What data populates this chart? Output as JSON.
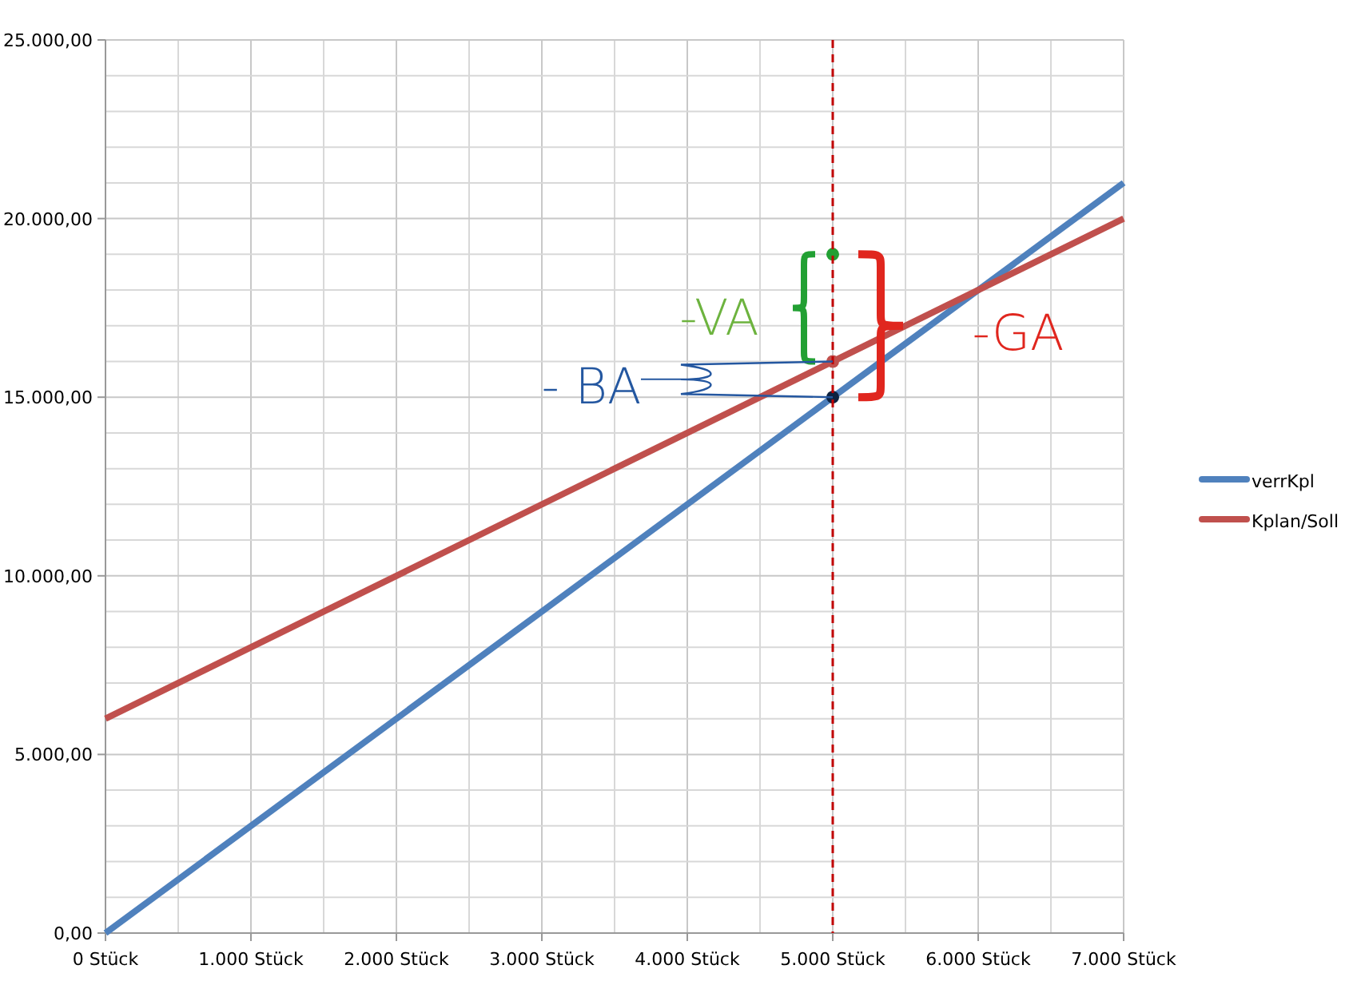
{
  "chart_data": {
    "type": "line",
    "xlim": [
      0,
      7000
    ],
    "xticks": [
      {
        "value": 0,
        "label": "0 Stück"
      },
      {
        "value": 1000,
        "label": "1.000 Stück"
      },
      {
        "value": 2000,
        "label": "2.000 Stück"
      },
      {
        "value": 3000,
        "label": "3.000 Stück"
      },
      {
        "value": 4000,
        "label": "4.000 Stück"
      },
      {
        "value": 5000,
        "label": "5.000 Stück"
      },
      {
        "value": 6000,
        "label": "6.000 Stück"
      },
      {
        "value": 7000,
        "label": "7.000 Stück"
      }
    ],
    "ylim": [
      0,
      25000
    ],
    "yticks": [
      {
        "value": 0,
        "label": "0,00"
      },
      {
        "value": 5000,
        "label": "5.000,00"
      },
      {
        "value": 10000,
        "label": "10.000,00"
      },
      {
        "value": 15000,
        "label": "15.000,00"
      },
      {
        "value": 20000,
        "label": "20.000,00"
      },
      {
        "value": 25000,
        "label": "25.000,00"
      }
    ],
    "series": [
      {
        "name": "verrKpl",
        "color": "#4f81bd",
        "x": [
          0,
          7000
        ],
        "values": [
          0,
          21000
        ]
      },
      {
        "name": "Kplan/Soll",
        "color": "#c0504d",
        "x": [
          0,
          7000
        ],
        "values": [
          6000,
          20000
        ]
      },
      {
        "type": "scatter",
        "x": [
          5000,
          5000,
          5000
        ],
        "values": [
          19000,
          16000,
          15000
        ],
        "colors": [
          "#22a033",
          "#c0504d",
          "#0d2240"
        ],
        "marker": "circle"
      }
    ],
    "ref_lines": [
      {
        "axis": "x",
        "value": 5000,
        "color": "#c00000",
        "line_style": "dashed"
      }
    ],
    "annotations": [
      "-VA",
      "-GA",
      "- BA"
    ],
    "grid": true,
    "legend": "right",
    "line_style": "solid"
  }
}
